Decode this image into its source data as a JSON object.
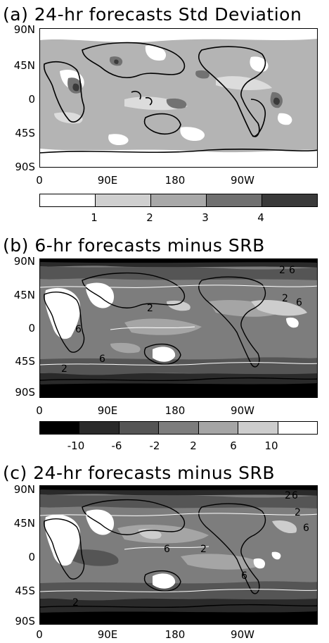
{
  "chart_data": [
    {
      "type": "heatmap",
      "title": "(a) 24-hr forecasts Std Deviation",
      "y_ticks": [
        "90N",
        "45N",
        "0",
        "45S",
        "90S"
      ],
      "x_ticks": [
        "0",
        "90E",
        "180",
        "90W"
      ],
      "colorbar_labels": [
        "1",
        "2",
        "3",
        "4"
      ],
      "colorbar_colors": [
        "#ffffff",
        "#cfcfcf",
        "#a8a8a8",
        "#707070",
        "#3a3a3a"
      ]
    },
    {
      "type": "heatmap",
      "title": "(b) 6-hr forecasts minus SRB",
      "y_ticks": [
        "90N",
        "45N",
        "0",
        "45S",
        "90S"
      ],
      "x_ticks": [
        "0",
        "90E",
        "180",
        "90W"
      ],
      "colorbar_labels": [
        "-10",
        "-6",
        "-2",
        "2",
        "6",
        "10"
      ],
      "colorbar_colors": [
        "#000000",
        "#2a2a2a",
        "#555555",
        "#7d7d7d",
        "#a5a5a5",
        "#cdcdcd",
        "#ffffff"
      ],
      "contour_labels": [
        "2",
        "6",
        "2",
        "6",
        "2",
        "6",
        "2",
        "6"
      ]
    },
    {
      "type": "heatmap",
      "title": "(c) 24-hr forecasts minus SRB",
      "y_ticks": [
        "90N",
        "45N",
        "0",
        "45S",
        "90S"
      ],
      "x_ticks": [
        "0",
        "90E",
        "180",
        "90W"
      ],
      "contour_labels": [
        "2",
        "6",
        "2",
        "6",
        "2",
        "6",
        "2",
        "6"
      ]
    }
  ]
}
